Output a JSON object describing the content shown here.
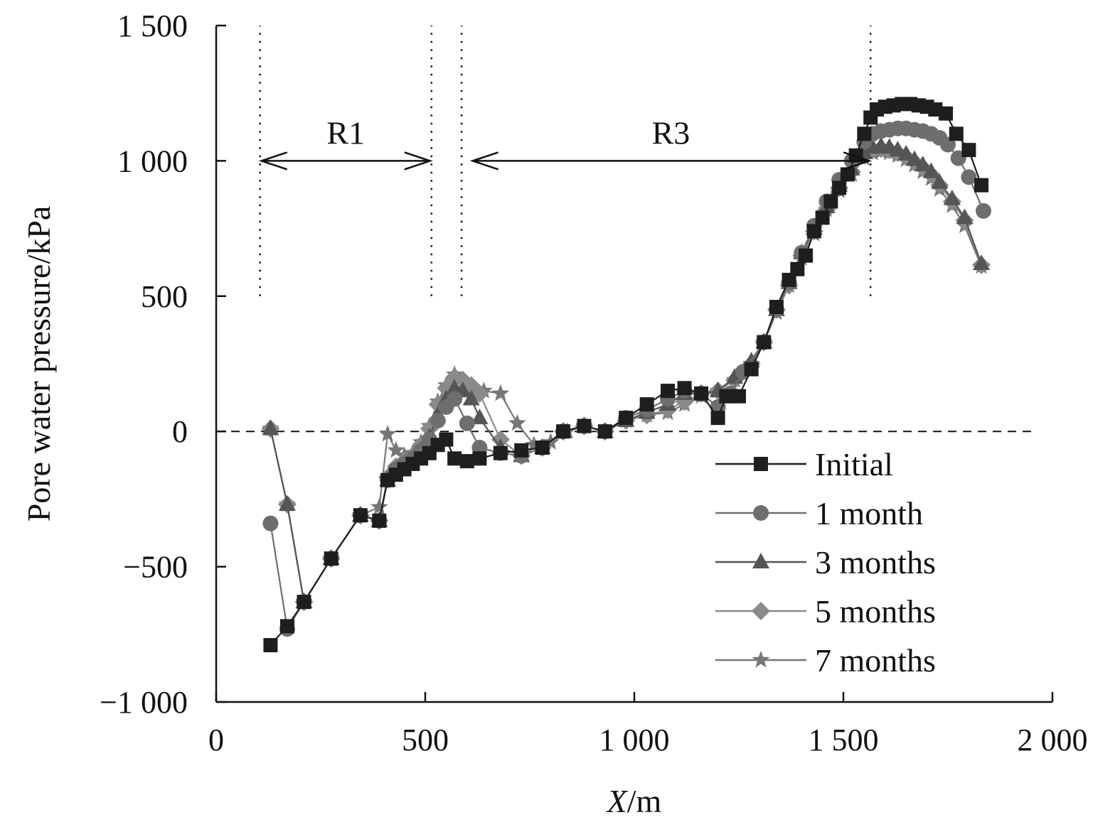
{
  "chart_data": {
    "type": "line",
    "xlabel_var": "X",
    "xlabel_unit": "/m",
    "ylabel": "Pore water pressure/kPa",
    "xlim": [
      0,
      2000
    ],
    "ylim": [
      -1000,
      1500
    ],
    "xticks": [
      0,
      500,
      1000,
      1500,
      2000
    ],
    "xtick_labels": [
      "0",
      "500",
      "1 000",
      "1 500",
      "2 000"
    ],
    "yticks": [
      -1000,
      -500,
      0,
      500,
      1000,
      1500
    ],
    "ytick_labels": [
      "−1 000",
      "−500",
      "0",
      "500",
      "1 000",
      "1 500"
    ],
    "grid": false,
    "legend_position": "bottom-right",
    "reference_lines": [
      {
        "axis": "y",
        "value": 0,
        "style": "dashed"
      },
      {
        "axis": "x",
        "value": 105,
        "style": "dotted",
        "from": 500,
        "to": 1500
      },
      {
        "axis": "x",
        "value": 515,
        "style": "dotted",
        "from": 500,
        "to": 1500
      },
      {
        "axis": "x",
        "value": 587,
        "style": "dotted",
        "from": 500,
        "to": 1500
      },
      {
        "axis": "x",
        "value": 1565,
        "style": "dotted",
        "from": 500,
        "to": 1500
      }
    ],
    "annotations": [
      {
        "text": "R1",
        "x_from": 105,
        "x_to": 515,
        "y": 1000,
        "label_y": 1100
      },
      {
        "text": "R3",
        "x_from": 610,
        "x_to": 1565,
        "y": 1000,
        "label_y": 1100
      }
    ],
    "series": [
      {
        "name": "Initial",
        "marker": "square",
        "color": "#1e1e1e",
        "x": [
          130,
          170,
          210,
          275,
          345,
          390,
          410,
          430,
          450,
          470,
          490,
          510,
          530,
          550,
          570,
          600,
          630,
          680,
          730,
          780,
          830,
          880,
          930,
          980,
          1030,
          1080,
          1120,
          1160,
          1200,
          1220,
          1250,
          1280,
          1310,
          1340,
          1370,
          1390,
          1410,
          1430,
          1450,
          1470,
          1490,
          1510,
          1530,
          1550,
          1565,
          1580,
          1600,
          1620,
          1640,
          1660,
          1680,
          1700,
          1720,
          1745,
          1770,
          1800,
          1830
        ],
        "y": [
          -790,
          -720,
          -630,
          -470,
          -310,
          -330,
          -180,
          -160,
          -140,
          -120,
          -100,
          -80,
          -50,
          -30,
          -100,
          -110,
          -100,
          -80,
          -70,
          -60,
          0,
          20,
          0,
          50,
          100,
          150,
          160,
          140,
          50,
          130,
          130,
          230,
          330,
          460,
          560,
          600,
          650,
          740,
          790,
          850,
          900,
          950,
          1020,
          1100,
          1160,
          1190,
          1200,
          1205,
          1210,
          1210,
          1205,
          1200,
          1190,
          1175,
          1100,
          1040,
          910
        ]
      },
      {
        "name": "1 month",
        "marker": "circle",
        "color": "#6e6e6e",
        "x": [
          130,
          170,
          210,
          275,
          345,
          390,
          410,
          430,
          450,
          470,
          490,
          510,
          530,
          550,
          570,
          600,
          630,
          680,
          730,
          780,
          830,
          880,
          930,
          980,
          1030,
          1080,
          1120,
          1160,
          1200,
          1230,
          1260,
          1310,
          1340,
          1370,
          1400,
          1430,
          1460,
          1490,
          1520,
          1550,
          1570,
          1590,
          1610,
          1630,
          1650,
          1670,
          1690,
          1710,
          1730,
          1750,
          1775,
          1800,
          1835
        ],
        "y": [
          -340,
          -730,
          -630,
          -470,
          -310,
          -330,
          -180,
          -140,
          -120,
          -100,
          -70,
          -30,
          40,
          90,
          120,
          30,
          -60,
          -80,
          -90,
          -60,
          0,
          20,
          0,
          50,
          80,
          120,
          150,
          140,
          90,
          140,
          220,
          330,
          450,
          550,
          660,
          760,
          850,
          930,
          1000,
          1070,
          1100,
          1110,
          1115,
          1120,
          1120,
          1115,
          1110,
          1100,
          1085,
          1060,
          1010,
          940,
          815
        ]
      },
      {
        "name": "3 months",
        "marker": "triangle",
        "color": "#555555",
        "x": [
          130,
          170,
          210,
          275,
          345,
          390,
          410,
          430,
          450,
          470,
          490,
          510,
          530,
          550,
          570,
          590,
          610,
          630,
          680,
          730,
          780,
          830,
          880,
          930,
          980,
          1030,
          1080,
          1120,
          1160,
          1200,
          1240,
          1280,
          1310,
          1340,
          1370,
          1400,
          1430,
          1460,
          1490,
          1520,
          1550,
          1570,
          1590,
          1610,
          1630,
          1650,
          1670,
          1690,
          1710,
          1730,
          1760,
          1790,
          1830
        ],
        "y": [
          10,
          -270,
          -630,
          -470,
          -310,
          -330,
          -180,
          -140,
          -120,
          -100,
          -70,
          -20,
          60,
          120,
          160,
          150,
          120,
          50,
          -60,
          -90,
          -60,
          0,
          20,
          0,
          40,
          70,
          100,
          140,
          140,
          150,
          200,
          260,
          330,
          450,
          550,
          660,
          750,
          830,
          910,
          970,
          1030,
          1050,
          1055,
          1050,
          1040,
          1025,
          1005,
          985,
          960,
          920,
          860,
          790,
          620
        ]
      },
      {
        "name": "5 months",
        "marker": "diamond",
        "color": "#8a8a8a",
        "x": [
          130,
          170,
          210,
          275,
          345,
          390,
          410,
          430,
          450,
          470,
          490,
          510,
          530,
          550,
          570,
          590,
          610,
          630,
          680,
          730,
          780,
          830,
          880,
          930,
          980,
          1030,
          1080,
          1120,
          1160,
          1200,
          1240,
          1280,
          1310,
          1340,
          1370,
          1400,
          1430,
          1460,
          1490,
          1520,
          1550,
          1570,
          1590,
          1610,
          1630,
          1650,
          1670,
          1690,
          1710,
          1730,
          1760,
          1790,
          1830
        ],
        "y": [
          10,
          -270,
          -630,
          -470,
          -310,
          -330,
          -170,
          -130,
          -110,
          -90,
          -50,
          10,
          100,
          160,
          200,
          190,
          170,
          140,
          -30,
          -90,
          -60,
          0,
          20,
          0,
          40,
          60,
          80,
          110,
          140,
          150,
          190,
          250,
          330,
          450,
          540,
          650,
          740,
          820,
          900,
          960,
          1020,
          1040,
          1045,
          1040,
          1030,
          1015,
          995,
          975,
          950,
          910,
          850,
          780,
          615
        ]
      },
      {
        "name": "7 months",
        "marker": "star",
        "color": "#767676",
        "x": [
          130,
          170,
          210,
          275,
          345,
          390,
          410,
          430,
          450,
          470,
          490,
          510,
          530,
          550,
          570,
          590,
          610,
          640,
          680,
          720,
          760,
          800,
          840,
          880,
          930,
          980,
          1030,
          1080,
          1120,
          1160,
          1200,
          1240,
          1280,
          1310,
          1340,
          1370,
          1400,
          1430,
          1460,
          1490,
          1520,
          1550,
          1570,
          1590,
          1610,
          1630,
          1650,
          1670,
          1690,
          1710,
          1730,
          1760,
          1790,
          1830
        ],
        "y": [
          10,
          -270,
          -630,
          -470,
          -310,
          -280,
          -10,
          -70,
          -90,
          -80,
          -40,
          20,
          110,
          170,
          210,
          180,
          160,
          150,
          140,
          30,
          -50,
          -40,
          0,
          20,
          0,
          40,
          60,
          70,
          100,
          130,
          150,
          190,
          250,
          330,
          440,
          540,
          640,
          730,
          820,
          890,
          950,
          1010,
          1030,
          1035,
          1030,
          1020,
          1005,
          985,
          960,
          935,
          895,
          835,
          760,
          610
        ]
      }
    ]
  }
}
